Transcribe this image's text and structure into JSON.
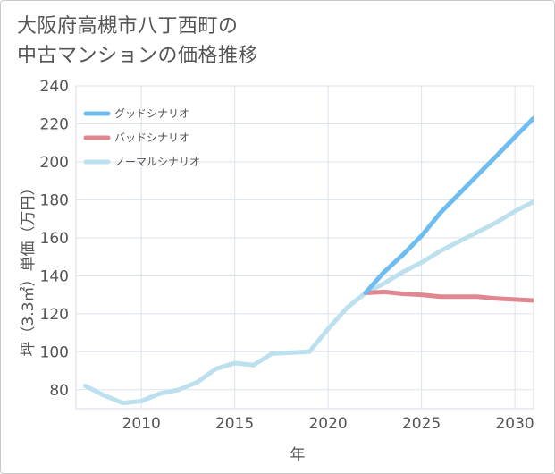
{
  "title_line1": "大阪府高槻市八丁西町の",
  "title_line2": "中古マンションの価格推移",
  "chart_data": {
    "type": "line",
    "title": "大阪府高槻市八丁西町の中古マンションの価格推移",
    "xlabel": "年",
    "ylabel": "坪（3.3㎡）単価（万円）",
    "xlim": [
      2006.5,
      2031
    ],
    "ylim": [
      70,
      240
    ],
    "xticks": [
      2010,
      2015,
      2020,
      2025,
      2030
    ],
    "yticks": [
      80,
      100,
      120,
      140,
      160,
      180,
      200,
      220,
      240
    ],
    "legend_position": "top-left",
    "series": [
      {
        "name": "グッドシナリオ",
        "color": "#6ebcf0",
        "x": [
          2022,
          2023,
          2024,
          2025,
          2026,
          2027,
          2028,
          2029,
          2030,
          2031
        ],
        "values": [
          131,
          142,
          151,
          161,
          173,
          183,
          193,
          203,
          213,
          223
        ]
      },
      {
        "name": "バッドシナリオ",
        "color": "#e0888f",
        "x": [
          2022,
          2023,
          2024,
          2025,
          2026,
          2027,
          2028,
          2029,
          2030,
          2031
        ],
        "values": [
          131,
          131.5,
          130.5,
          130,
          129,
          129,
          129,
          128,
          127.5,
          127
        ]
      },
      {
        "name": "ノーマルシナリオ",
        "color": "#bde0ee",
        "x": [
          2007,
          2008,
          2009,
          2010,
          2011,
          2012,
          2013,
          2014,
          2015,
          2016,
          2017,
          2018,
          2019,
          2020,
          2021,
          2022,
          2023,
          2024,
          2025,
          2026,
          2027,
          2028,
          2029,
          2030,
          2031
        ],
        "values": [
          82,
          77,
          73,
          74,
          78,
          80,
          84,
          91,
          94,
          93,
          99,
          99.5,
          100,
          112,
          123,
          131,
          136,
          142,
          147,
          153,
          158,
          163,
          168,
          174,
          179
        ]
      }
    ]
  }
}
